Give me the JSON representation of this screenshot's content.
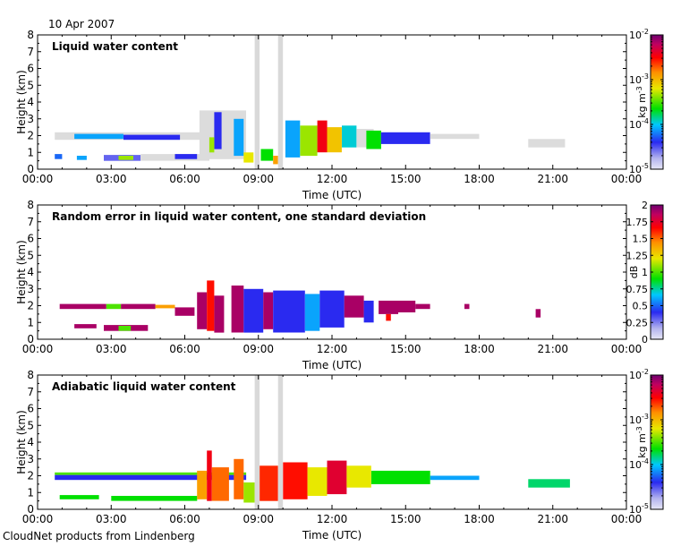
{
  "header": {
    "date": "10 Apr 2007"
  },
  "footer": {
    "credit": "CloudNet products from Lindenberg"
  },
  "chart_data": [
    {
      "type": "heatmap",
      "title": "Liquid water content",
      "xlabel": "Time (UTC)",
      "ylabel": "Height (km)",
      "xticks": [
        "00:00",
        "03:00",
        "06:00",
        "09:00",
        "12:00",
        "15:00",
        "18:00",
        "21:00",
        "00:00"
      ],
      "xlim": [
        0,
        24
      ],
      "yticks": [
        "0",
        "1",
        "2",
        "3",
        "4",
        "5",
        "6",
        "7",
        "8"
      ],
      "ylim": [
        0,
        8
      ],
      "colorbar": {
        "label": "kg m-3",
        "scale": "log",
        "range": [
          1e-05,
          0.01
        ],
        "ticks": [
          {
            "base": "10",
            "exp": "-5"
          },
          {
            "base": "10",
            "exp": "-4"
          },
          {
            "base": "10",
            "exp": "-3"
          },
          {
            "base": "10",
            "exp": "-2"
          }
        ]
      },
      "gaps": [
        [
          8.85,
          9.05
        ],
        [
          9.8,
          10.0
        ]
      ],
      "cells": [
        {
          "t": [
            0.7,
            8.0
          ],
          "h": [
            1.75,
            2.2
          ],
          "v": "gray"
        },
        {
          "t": [
            1.5,
            3.5
          ],
          "h": [
            1.8,
            2.1
          ],
          "v": 0.3
        },
        {
          "t": [
            3.5,
            5.8
          ],
          "h": [
            1.75,
            2.05
          ],
          "v": 0.2
        },
        {
          "t": [
            0.7,
            1.0
          ],
          "h": [
            0.6,
            0.9
          ],
          "v": 0.25
        },
        {
          "t": [
            1.6,
            2.0
          ],
          "h": [
            0.55,
            0.8
          ],
          "v": 0.3
        },
        {
          "t": [
            2.7,
            4.2
          ],
          "h": [
            0.5,
            0.85
          ],
          "v": 0.15
        },
        {
          "t": [
            3.3,
            3.9
          ],
          "h": [
            0.55,
            0.8
          ],
          "v": 0.55
        },
        {
          "t": [
            4.2,
            7.0
          ],
          "h": [
            0.5,
            0.9
          ],
          "v": "gray"
        },
        {
          "t": [
            5.6,
            6.5
          ],
          "h": [
            0.6,
            0.9
          ],
          "v": 0.2
        },
        {
          "t": [
            6.6,
            8.5
          ],
          "h": [
            0.6,
            3.5
          ],
          "v": "gray"
        },
        {
          "t": [
            7.2,
            7.5
          ],
          "h": [
            1.2,
            3.4
          ],
          "v": 0.2
        },
        {
          "t": [
            7.0,
            7.2
          ],
          "h": [
            1.0,
            1.9
          ],
          "v": 0.55
        },
        {
          "t": [
            8.0,
            8.4
          ],
          "h": [
            0.8,
            3.0
          ],
          "v": 0.3
        },
        {
          "t": [
            8.4,
            8.8
          ],
          "h": [
            0.4,
            1.0
          ],
          "v": 0.6
        },
        {
          "t": [
            9.1,
            9.6
          ],
          "h": [
            0.5,
            1.2
          ],
          "v": 0.45
        },
        {
          "t": [
            9.6,
            9.8
          ],
          "h": [
            0.3,
            0.8
          ],
          "v": 0.7
        },
        {
          "t": [
            10.1,
            10.7
          ],
          "h": [
            0.7,
            2.9
          ],
          "v": 0.3
        },
        {
          "t": [
            10.7,
            11.4
          ],
          "h": [
            0.8,
            2.6
          ],
          "v": 0.55
        },
        {
          "t": [
            11.4,
            11.8
          ],
          "h": [
            1.0,
            2.9
          ],
          "v": 0.85
        },
        {
          "t": [
            11.8,
            12.4
          ],
          "h": [
            1.0,
            2.5
          ],
          "v": 0.65
        },
        {
          "t": [
            12.4,
            13.0
          ],
          "h": [
            1.3,
            2.6
          ],
          "v": 0.35
        },
        {
          "t": [
            13.0,
            13.7
          ],
          "h": [
            1.3,
            2.4
          ],
          "v": "gray"
        },
        {
          "t": [
            13.4,
            14.0
          ],
          "h": [
            1.2,
            2.3
          ],
          "v": 0.45
        },
        {
          "t": [
            14.0,
            16.0
          ],
          "h": [
            1.5,
            2.2
          ],
          "v": 0.2
        },
        {
          "t": [
            16.0,
            18.0
          ],
          "h": [
            1.8,
            2.1
          ],
          "v": "gray"
        },
        {
          "t": [
            20.0,
            21.5
          ],
          "h": [
            1.3,
            1.8
          ],
          "v": "gray"
        }
      ]
    },
    {
      "type": "heatmap",
      "title": "Random error in liquid water content, one standard deviation",
      "xlabel": "Time (UTC)",
      "ylabel": "Height (km)",
      "xticks": [
        "00:00",
        "03:00",
        "06:00",
        "09:00",
        "12:00",
        "15:00",
        "18:00",
        "21:00",
        "00:00"
      ],
      "xlim": [
        0,
        24
      ],
      "yticks": [
        "0",
        "1",
        "2",
        "3",
        "4",
        "5",
        "6",
        "7",
        "8"
      ],
      "ylim": [
        0,
        8
      ],
      "colorbar": {
        "label": "dB",
        "scale": "linear",
        "range": [
          0,
          2
        ],
        "ticks": [
          "0",
          "0.25",
          "0.5",
          "0.75",
          "1",
          "1.25",
          "1.5",
          "1.75",
          "2"
        ]
      },
      "cells": [
        {
          "t": [
            0.9,
            2.8
          ],
          "h": [
            1.8,
            2.1
          ],
          "v": 0.95
        },
        {
          "t": [
            2.8,
            3.4
          ],
          "h": [
            1.8,
            2.1
          ],
          "v": 0.5
        },
        {
          "t": [
            3.4,
            4.8
          ],
          "h": [
            1.8,
            2.1
          ],
          "v": 0.95
        },
        {
          "t": [
            4.8,
            5.6
          ],
          "h": [
            1.85,
            2.05
          ],
          "v": 0.7
        },
        {
          "t": [
            1.5,
            2.4
          ],
          "h": [
            0.65,
            0.9
          ],
          "v": 0.95
        },
        {
          "t": [
            2.7,
            4.5
          ],
          "h": [
            0.5,
            0.85
          ],
          "v": 0.95
        },
        {
          "t": [
            3.3,
            3.8
          ],
          "h": [
            0.5,
            0.8
          ],
          "v": 0.5
        },
        {
          "t": [
            5.6,
            6.4
          ],
          "h": [
            1.4,
            1.9
          ],
          "v": 0.95
        },
        {
          "t": [
            6.5,
            6.9
          ],
          "h": [
            0.6,
            2.8
          ],
          "v": 0.95
        },
        {
          "t": [
            6.9,
            7.2
          ],
          "h": [
            0.5,
            3.5
          ],
          "v": 0.82
        },
        {
          "t": [
            7.2,
            7.6
          ],
          "h": [
            0.4,
            2.6
          ],
          "v": 0.95
        },
        {
          "t": [
            7.9,
            8.4
          ],
          "h": [
            0.4,
            3.2
          ],
          "v": 0.95
        },
        {
          "t": [
            8.4,
            9.2
          ],
          "h": [
            0.4,
            3.0
          ],
          "v": 0.2
        },
        {
          "t": [
            9.2,
            9.6
          ],
          "h": [
            0.6,
            2.8
          ],
          "v": 0.95
        },
        {
          "t": [
            9.6,
            10.9
          ],
          "h": [
            0.4,
            2.9
          ],
          "v": 0.2
        },
        {
          "t": [
            10.9,
            11.5
          ],
          "h": [
            0.5,
            2.7
          ],
          "v": 0.3
        },
        {
          "t": [
            11.5,
            12.5
          ],
          "h": [
            0.7,
            2.9
          ],
          "v": 0.2
        },
        {
          "t": [
            12.5,
            13.3
          ],
          "h": [
            1.3,
            2.6
          ],
          "v": 0.95
        },
        {
          "t": [
            13.3,
            13.7
          ],
          "h": [
            1.0,
            2.3
          ],
          "v": 0.2
        },
        {
          "t": [
            13.9,
            14.7
          ],
          "h": [
            1.5,
            2.3
          ],
          "v": 0.95
        },
        {
          "t": [
            14.2,
            14.4
          ],
          "h": [
            1.1,
            1.5
          ],
          "v": 0.82
        },
        {
          "t": [
            14.7,
            15.4
          ],
          "h": [
            1.6,
            2.3
          ],
          "v": 0.95
        },
        {
          "t": [
            15.4,
            16.0
          ],
          "h": [
            1.8,
            2.1
          ],
          "v": 0.95
        },
        {
          "t": [
            17.4,
            17.6
          ],
          "h": [
            1.8,
            2.1
          ],
          "v": 0.95
        },
        {
          "t": [
            20.3,
            20.5
          ],
          "h": [
            1.3,
            1.8
          ],
          "v": 0.95
        }
      ]
    },
    {
      "type": "heatmap",
      "title": "Adiabatic liquid water content",
      "xlabel": "Time (UTC)",
      "ylabel": "Height (km)",
      "xticks": [
        "00:00",
        "03:00",
        "06:00",
        "09:00",
        "12:00",
        "15:00",
        "18:00",
        "21:00",
        "00:00"
      ],
      "xlim": [
        0,
        24
      ],
      "yticks": [
        "0",
        "1",
        "2",
        "3",
        "4",
        "5",
        "6",
        "7",
        "8"
      ],
      "ylim": [
        0,
        8
      ],
      "colorbar": {
        "label": "kg m-3",
        "scale": "log",
        "range": [
          1e-05,
          0.01
        ],
        "ticks": [
          {
            "base": "10",
            "exp": "-5"
          },
          {
            "base": "10",
            "exp": "-4"
          },
          {
            "base": "10",
            "exp": "-3"
          },
          {
            "base": "10",
            "exp": "-2"
          }
        ]
      },
      "gaps": [
        [
          8.85,
          9.05
        ],
        [
          9.8,
          10.0
        ]
      ],
      "cells": [
        {
          "t": [
            0.7,
            8.5
          ],
          "h": [
            1.75,
            2.05
          ],
          "v": 0.2
        },
        {
          "t": [
            0.7,
            8.5
          ],
          "h": [
            2.05,
            2.2
          ],
          "v": 0.5
        },
        {
          "t": [
            0.9,
            2.5
          ],
          "h": [
            0.6,
            0.85
          ],
          "v": 0.45
        },
        {
          "t": [
            3.0,
            6.5
          ],
          "h": [
            0.5,
            0.8
          ],
          "v": 0.45
        },
        {
          "t": [
            6.5,
            6.9
          ],
          "h": [
            0.6,
            2.3
          ],
          "v": 0.7
        },
        {
          "t": [
            6.9,
            7.1
          ],
          "h": [
            0.5,
            3.5
          ],
          "v": 0.85
        },
        {
          "t": [
            7.1,
            7.8
          ],
          "h": [
            0.5,
            2.5
          ],
          "v": 0.75
        },
        {
          "t": [
            8.0,
            8.4
          ],
          "h": [
            0.6,
            3.0
          ],
          "v": 0.75
        },
        {
          "t": [
            8.4,
            8.85
          ],
          "h": [
            0.4,
            1.6
          ],
          "v": 0.55
        },
        {
          "t": [
            9.05,
            9.8
          ],
          "h": [
            0.5,
            2.6
          ],
          "v": 0.8
        },
        {
          "t": [
            10.0,
            11.0
          ],
          "h": [
            0.6,
            2.8
          ],
          "v": 0.82
        },
        {
          "t": [
            11.0,
            11.8
          ],
          "h": [
            0.8,
            2.5
          ],
          "v": 0.6
        },
        {
          "t": [
            11.8,
            12.6
          ],
          "h": [
            0.9,
            2.9
          ],
          "v": 0.88
        },
        {
          "t": [
            12.6,
            13.6
          ],
          "h": [
            1.3,
            2.6
          ],
          "v": 0.6
        },
        {
          "t": [
            13.6,
            16.0
          ],
          "h": [
            1.5,
            2.3
          ],
          "v": 0.45
        },
        {
          "t": [
            16.0,
            18.0
          ],
          "h": [
            1.75,
            2.0
          ],
          "v": 0.3
        },
        {
          "t": [
            20.0,
            21.7
          ],
          "h": [
            1.3,
            1.8
          ],
          "v": 0.4
        }
      ]
    }
  ]
}
